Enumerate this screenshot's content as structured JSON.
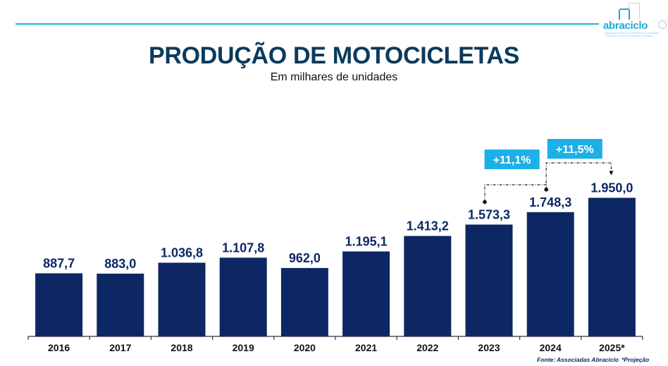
{
  "header": {
    "logo_text": "abraciclo",
    "logo_tagline": "Associação Brasileira dos Fabricantes de Motocicletas, Ciclomotores, Motonetas, Bicicletas e Similares"
  },
  "footer": {
    "source": "Fonte: Associadas Abraciclo",
    "note": "*Projeção"
  },
  "chart_data": {
    "type": "bar",
    "title": "PRODUÇÃO DE MOTOCICLETAS",
    "subtitle": "Em milhares de unidades",
    "xlabel": "",
    "ylabel": "",
    "ylim": [
      0,
      2400
    ],
    "grid": false,
    "categories": [
      "2016",
      "2017",
      "2018",
      "2019",
      "2020",
      "2021",
      "2022",
      "2023",
      "2024",
      "2025*"
    ],
    "values": [
      887.7,
      883.0,
      1036.8,
      1107.8,
      962.0,
      1195.1,
      1413.2,
      1573.3,
      1748.3,
      1950.0
    ],
    "value_labels": [
      "887,7",
      "883,0",
      "1.036,8",
      "1.107,8",
      "962,0",
      "1.195,1",
      "1.413,2",
      "1.573,3",
      "1.748,3",
      "1.950,0"
    ],
    "bar_color": "#0d2765",
    "annotations": [
      {
        "from": "2023",
        "to": "2024",
        "label": "+11,1%"
      },
      {
        "from": "2024",
        "to": "2025*",
        "label": "+11,5%"
      }
    ],
    "annotation_color": "#1cb0e6"
  }
}
